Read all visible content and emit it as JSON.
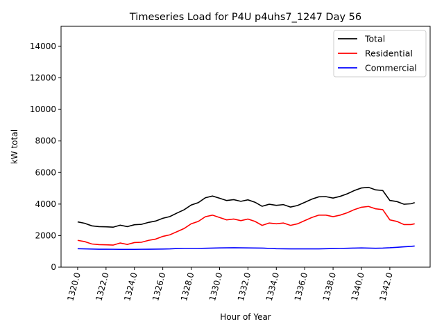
{
  "chart_data": {
    "type": "line",
    "title": "Timeseries Load for P4U p4uhs7_1247  Day 56",
    "xlabel": "Hour of Year",
    "ylabel": "kW total",
    "xlim": [
      1318.83,
      1344.84
    ],
    "ylim": [
      0,
      15270
    ],
    "xticks": [
      1320,
      1322,
      1324,
      1326,
      1328,
      1330,
      1332,
      1334,
      1336,
      1338,
      1340,
      1342
    ],
    "xtick_labels": [
      "1320.0",
      "1322.0",
      "1324.0",
      "1326.0",
      "1328.0",
      "1330.0",
      "1332.0",
      "1334.0",
      "1336.0",
      "1338.0",
      "1340.0",
      "1342.0"
    ],
    "yticks": [
      0,
      2000,
      4000,
      6000,
      8000,
      10000,
      12000,
      14000
    ],
    "ytick_labels": [
      "0",
      "2000",
      "4000",
      "6000",
      "8000",
      "10000",
      "12000",
      "14000"
    ],
    "legend_position": "top-right",
    "x": [
      1320,
      1320.5,
      1321,
      1321.5,
      1322,
      1322.5,
      1323,
      1323.5,
      1324,
      1324.5,
      1325,
      1325.5,
      1326,
      1326.5,
      1327,
      1327.5,
      1328,
      1328.5,
      1329,
      1329.5,
      1330,
      1330.5,
      1331,
      1331.5,
      1332,
      1332.5,
      1333,
      1333.5,
      1334,
      1334.5,
      1335,
      1335.5,
      1336,
      1336.5,
      1337,
      1337.5,
      1338,
      1338.5,
      1339,
      1339.5,
      1340,
      1340.5,
      1341,
      1341.5,
      1342,
      1342.5,
      1343,
      1343.5,
      1343.75
    ],
    "series": [
      {
        "name": "Total",
        "color": "#000000",
        "values": [
          2870,
          2780,
          2620,
          2570,
          2560,
          2535,
          2660,
          2570,
          2690,
          2715,
          2840,
          2925,
          3100,
          3210,
          3430,
          3640,
          3940,
          4090,
          4400,
          4510,
          4370,
          4225,
          4280,
          4175,
          4270,
          4115,
          3860,
          3990,
          3920,
          3965,
          3810,
          3910,
          4110,
          4310,
          4460,
          4470,
          4380,
          4490,
          4650,
          4860,
          5020,
          5060,
          4900,
          4860,
          4230,
          4160,
          3990,
          4020,
          4090
        ]
      },
      {
        "name": "Residential",
        "color": "#ff0000",
        "values": [
          1700,
          1620,
          1470,
          1430,
          1420,
          1400,
          1530,
          1440,
          1560,
          1580,
          1700,
          1780,
          1950,
          2050,
          2250,
          2450,
          2750,
          2900,
          3200,
          3300,
          3150,
          3000,
          3050,
          2950,
          3050,
          2900,
          2650,
          2800,
          2750,
          2800,
          2650,
          2750,
          2950,
          3150,
          3300,
          3300,
          3200,
          3300,
          3450,
          3650,
          3800,
          3850,
          3700,
          3650,
          3000,
          2900,
          2700,
          2700,
          2750
        ]
      },
      {
        "name": "Commercial",
        "color": "#0000ff",
        "values": [
          1170,
          1160,
          1150,
          1140,
          1140,
          1135,
          1130,
          1130,
          1130,
          1135,
          1140,
          1145,
          1150,
          1160,
          1180,
          1190,
          1190,
          1190,
          1200,
          1210,
          1220,
          1225,
          1230,
          1225,
          1220,
          1215,
          1210,
          1190,
          1170,
          1165,
          1160,
          1160,
          1160,
          1160,
          1160,
          1170,
          1180,
          1190,
          1200,
          1210,
          1220,
          1210,
          1200,
          1210,
          1230,
          1260,
          1290,
          1320,
          1340
        ]
      }
    ]
  }
}
